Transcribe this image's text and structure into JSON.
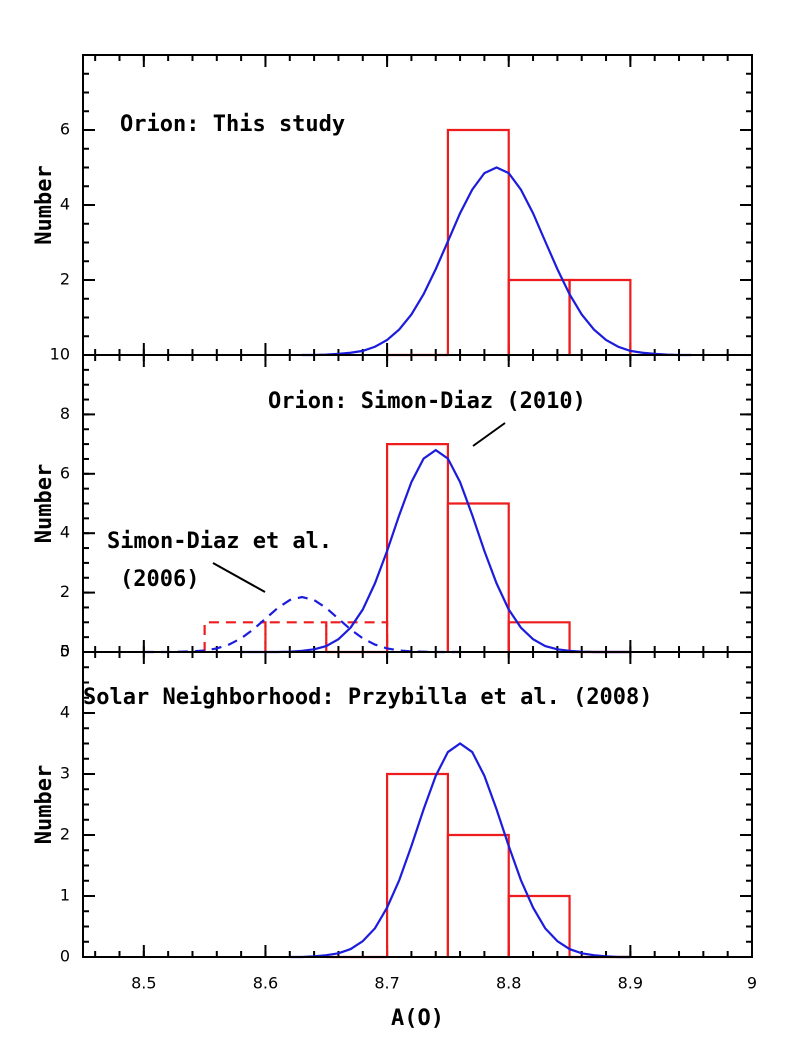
{
  "chart_data": [
    {
      "type": "histogram",
      "ylabel": "Number",
      "xlim": [
        8.45,
        9
      ],
      "xticks": [
        8.5,
        8.6,
        8.7,
        8.8,
        8.9,
        9
      ],
      "ylim": [
        0,
        8
      ],
      "yticks": [
        2,
        4,
        6
      ],
      "annotations": [
        "Orion: This study"
      ],
      "series": [
        {
          "bins": [
            8.7,
            8.75,
            8.8,
            8.85,
            8.9
          ],
          "values": [
            0,
            6,
            2,
            2
          ],
          "color": "#ee1c1c",
          "dash": false
        }
      ],
      "lines": [
        {
          "x": [
            8.63,
            8.64,
            8.65,
            8.66,
            8.67,
            8.68,
            8.69,
            8.7,
            8.71,
            8.72,
            8.73,
            8.74,
            8.75,
            8.76,
            8.77,
            8.78,
            8.79,
            8.8,
            8.81,
            8.82,
            8.83,
            8.84,
            8.85,
            8.86,
            8.87,
            8.88,
            8.89,
            8.9,
            8.91,
            8.92,
            8.93,
            8.94,
            8.95
          ],
          "values": [
            0,
            0,
            0.01,
            0.03,
            0.06,
            0.11,
            0.22,
            0.4,
            0.68,
            1.08,
            1.62,
            2.29,
            3.03,
            3.78,
            4.41,
            4.85,
            5,
            4.85,
            4.41,
            3.78,
            3.03,
            2.29,
            1.62,
            1.08,
            0.68,
            0.4,
            0.22,
            0.11,
            0.06,
            0.03,
            0.01,
            0,
            0
          ],
          "color": "#1c1cdd",
          "dash": false
        }
      ]
    },
    {
      "type": "histogram",
      "ylabel": "Number",
      "xlim": [
        8.45,
        9
      ],
      "xticks": [
        8.5,
        8.6,
        8.7,
        8.8,
        8.9,
        9
      ],
      "ylim": [
        0,
        10
      ],
      "yticks": [
        0,
        2,
        4,
        6,
        8,
        10
      ],
      "annotations": [
        "Orion: Simon-Diaz (2010)",
        "Simon-Diaz et al.",
        "(2006)"
      ],
      "series": [
        {
          "bins": [
            8.65,
            8.7,
            8.75,
            8.8,
            8.85,
            8.9
          ],
          "values": [
            0,
            7,
            5,
            1,
            0
          ],
          "color": "#ee1c1c",
          "dash": false
        },
        {
          "bins": [
            8.55,
            8.6,
            8.65,
            8.7
          ],
          "values": [
            1,
            1,
            1
          ],
          "color": "#ee1c1c",
          "dash": true
        }
      ],
      "lines": [
        {
          "x": [
            8.58,
            8.59,
            8.6,
            8.61,
            8.62,
            8.63,
            8.64,
            8.65,
            8.66,
            8.67,
            8.68,
            8.69,
            8.7,
            8.71,
            8.72,
            8.73,
            8.74,
            8.75,
            8.76,
            8.77,
            8.78,
            8.79,
            8.8,
            8.81,
            8.82,
            8.83,
            8.84,
            8.85,
            8.86,
            8.87,
            8.88,
            8.89,
            8.9
          ],
          "values": [
            0,
            0,
            0,
            0,
            0.01,
            0.04,
            0.09,
            0.2,
            0.43,
            0.82,
            1.43,
            2.31,
            3.4,
            4.61,
            5.72,
            6.51,
            6.8,
            6.51,
            5.72,
            4.61,
            3.4,
            2.31,
            1.43,
            0.82,
            0.43,
            0.2,
            0.09,
            0.04,
            0.01,
            0,
            0,
            0,
            0
          ],
          "color": "#1c1cdd",
          "dash": false
        },
        {
          "x": [
            8.5,
            8.51,
            8.52,
            8.53,
            8.54,
            8.55,
            8.56,
            8.57,
            8.58,
            8.59,
            8.6,
            8.61,
            8.62,
            8.63,
            8.64,
            8.65,
            8.66,
            8.67,
            8.68,
            8.69,
            8.7,
            8.71,
            8.72,
            8.73,
            8.74,
            8.75,
            8.76
          ],
          "values": [
            0,
            0,
            0,
            0.01,
            0.02,
            0.05,
            0.12,
            0.25,
            0.46,
            0.76,
            1.12,
            1.48,
            1.75,
            1.85,
            1.75,
            1.48,
            1.12,
            0.76,
            0.46,
            0.25,
            0.12,
            0.05,
            0.02,
            0.01,
            0,
            0,
            0
          ],
          "color": "#1c1cdd",
          "dash": true
        }
      ]
    },
    {
      "type": "histogram",
      "ylabel": "Number",
      "xlabel": "A(O)",
      "xlim": [
        8.45,
        9
      ],
      "xticks": [
        8.5,
        8.6,
        8.7,
        8.8,
        8.9,
        9
      ],
      "ylim": [
        0,
        5
      ],
      "yticks": [
        0,
        1,
        2,
        3,
        4,
        5
      ],
      "annotations": [
        "Solar Neighborhood: Przybilla et al. (2008)"
      ],
      "series": [
        {
          "bins": [
            8.65,
            8.7,
            8.75,
            8.8,
            8.85,
            8.9
          ],
          "values": [
            0,
            3,
            2,
            1,
            0
          ],
          "color": "#ee1c1c",
          "dash": false
        }
      ],
      "lines": [
        {
          "x": [
            8.62,
            8.63,
            8.64,
            8.65,
            8.66,
            8.67,
            8.68,
            8.69,
            8.7,
            8.71,
            8.72,
            8.73,
            8.74,
            8.75,
            8.76,
            8.77,
            8.78,
            8.79,
            8.8,
            8.81,
            8.82,
            8.83,
            8.84,
            8.85,
            8.86,
            8.87,
            8.88,
            8.89,
            8.9
          ],
          "values": [
            0,
            0,
            0.01,
            0.03,
            0.06,
            0.13,
            0.26,
            0.47,
            0.81,
            1.26,
            1.82,
            2.42,
            2.97,
            3.36,
            3.5,
            3.36,
            2.97,
            2.42,
            1.82,
            1.26,
            0.81,
            0.47,
            0.26,
            0.13,
            0.06,
            0.03,
            0.01,
            0,
            0
          ],
          "color": "#1c1cdd",
          "dash": false
        }
      ]
    }
  ]
}
